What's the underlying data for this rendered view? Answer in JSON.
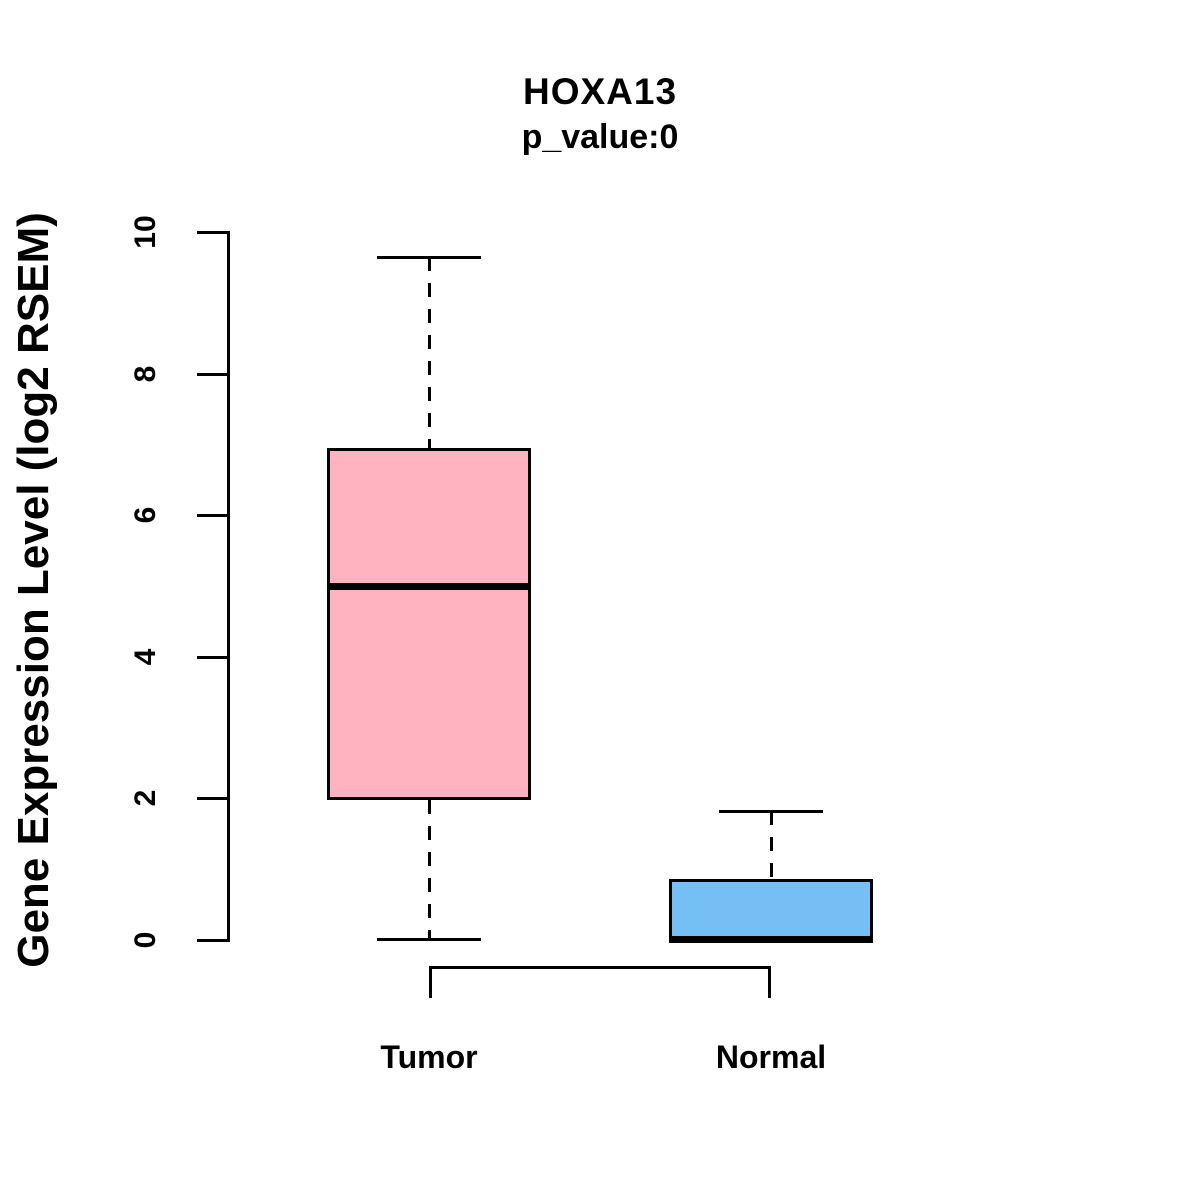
{
  "chart_data": {
    "type": "boxplot",
    "title": "HOXA13",
    "subtitle": "p_value:0",
    "ylabel": "Gene Expression Level (log2 RSEM)",
    "xlabel": "",
    "ylim": [
      0,
      10
    ],
    "yticks": [
      0,
      2,
      4,
      6,
      8,
      10
    ],
    "grid": false,
    "legend": "none",
    "groups": [
      {
        "label": "Tumor",
        "color": "#FFB3C1",
        "whisker_low": 0,
        "q1": 1.98,
        "median": 5.0,
        "q3": 6.95,
        "whisker_high": 9.65
      },
      {
        "label": "Normal",
        "color": "#76BFF5",
        "whisker_low": 0,
        "q1": 0.0,
        "median": 0.02,
        "q3": 0.86,
        "whisker_high": 1.82
      }
    ],
    "comparison_bracket": true,
    "line_color": "#000000"
  }
}
